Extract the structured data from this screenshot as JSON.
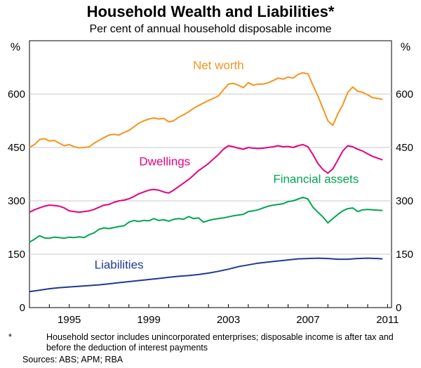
{
  "chart_data": {
    "type": "line",
    "title": "Household Wealth and Liabilities*",
    "subtitle": "Per cent of annual household disposable income",
    "ylabel_left": "%",
    "ylabel_right": "%",
    "xlim": [
      1993.0,
      2011.2
    ],
    "ylim": [
      0,
      750
    ],
    "y_ticks": [
      0,
      150,
      300,
      450,
      600
    ],
    "x_ticks": [
      1995,
      1999,
      2003,
      2007,
      2011
    ],
    "grid": "horizontal",
    "series": [
      {
        "name": "Net worth",
        "color": "#f7941d",
        "x": [
          1993.0,
          1993.25,
          1993.5,
          1993.75,
          1994.0,
          1994.25,
          1994.5,
          1994.75,
          1995.0,
          1995.25,
          1995.5,
          1995.75,
          1996.0,
          1996.25,
          1996.5,
          1996.75,
          1997.0,
          1997.25,
          1997.5,
          1997.75,
          1998.0,
          1998.25,
          1998.5,
          1998.75,
          1999.0,
          1999.25,
          1999.5,
          1999.75,
          2000.0,
          2000.25,
          2000.5,
          2000.75,
          2001.0,
          2001.25,
          2001.5,
          2001.75,
          2002.0,
          2002.25,
          2002.5,
          2002.75,
          2003.0,
          2003.25,
          2003.5,
          2003.75,
          2004.0,
          2004.25,
          2004.5,
          2004.75,
          2005.0,
          2005.25,
          2005.5,
          2005.75,
          2006.0,
          2006.25,
          2006.5,
          2006.75,
          2007.0,
          2007.25,
          2007.5,
          2007.75,
          2008.0,
          2008.25,
          2008.5,
          2008.75,
          2009.0,
          2009.25,
          2009.5,
          2009.75,
          2010.0,
          2010.25,
          2010.5,
          2010.75
        ],
        "values": [
          450,
          458,
          472,
          475,
          468,
          470,
          462,
          455,
          458,
          452,
          449,
          450,
          452,
          462,
          470,
          478,
          485,
          487,
          485,
          492,
          498,
          508,
          518,
          525,
          530,
          533,
          530,
          532,
          522,
          525,
          535,
          542,
          550,
          560,
          568,
          575,
          582,
          588,
          595,
          612,
          628,
          630,
          625,
          618,
          632,
          625,
          628,
          628,
          632,
          638,
          645,
          642,
          648,
          645,
          655,
          660,
          657,
          625,
          595,
          560,
          525,
          512,
          545,
          570,
          605,
          620,
          608,
          605,
          598,
          590,
          588,
          585
        ],
        "label_pos": [
          2002.5,
          670
        ]
      },
      {
        "name": "Dwellings",
        "color": "#e6007e",
        "x": [
          1993.0,
          1993.25,
          1993.5,
          1993.75,
          1994.0,
          1994.25,
          1994.5,
          1994.75,
          1995.0,
          1995.25,
          1995.5,
          1995.75,
          1996.0,
          1996.25,
          1996.5,
          1996.75,
          1997.0,
          1997.25,
          1997.5,
          1997.75,
          1998.0,
          1998.25,
          1998.5,
          1998.75,
          1999.0,
          1999.25,
          1999.5,
          1999.75,
          2000.0,
          2000.25,
          2000.5,
          2000.75,
          2001.0,
          2001.25,
          2001.5,
          2001.75,
          2002.0,
          2002.25,
          2002.5,
          2002.75,
          2003.0,
          2003.25,
          2003.5,
          2003.75,
          2004.0,
          2004.25,
          2004.5,
          2004.75,
          2005.0,
          2005.25,
          2005.5,
          2005.75,
          2006.0,
          2006.25,
          2006.5,
          2006.75,
          2007.0,
          2007.25,
          2007.5,
          2007.75,
          2008.0,
          2008.25,
          2008.5,
          2008.75,
          2009.0,
          2009.25,
          2009.5,
          2009.75,
          2010.0,
          2010.25,
          2010.5,
          2010.75
        ],
        "values": [
          268,
          275,
          280,
          285,
          288,
          287,
          285,
          280,
          272,
          270,
          268,
          270,
          272,
          276,
          282,
          288,
          290,
          296,
          300,
          302,
          306,
          312,
          320,
          325,
          330,
          332,
          330,
          325,
          322,
          330,
          340,
          350,
          360,
          372,
          385,
          395,
          405,
          418,
          430,
          445,
          455,
          452,
          448,
          445,
          450,
          448,
          447,
          448,
          450,
          452,
          455,
          452,
          453,
          450,
          455,
          458,
          452,
          430,
          405,
          388,
          378,
          390,
          415,
          440,
          455,
          452,
          445,
          440,
          432,
          425,
          420,
          415
        ],
        "label_pos": [
          1999.8,
          400
        ]
      },
      {
        "name": "Financial assets",
        "color": "#00a651",
        "x": [
          1993.0,
          1993.25,
          1993.5,
          1993.75,
          1994.0,
          1994.25,
          1994.5,
          1994.75,
          1995.0,
          1995.25,
          1995.5,
          1995.75,
          1996.0,
          1996.25,
          1996.5,
          1996.75,
          1997.0,
          1997.25,
          1997.5,
          1997.75,
          1998.0,
          1998.25,
          1998.5,
          1998.75,
          1999.0,
          1999.25,
          1999.5,
          1999.75,
          2000.0,
          2000.25,
          2000.5,
          2000.75,
          2001.0,
          2001.25,
          2001.5,
          2001.75,
          2002.0,
          2002.25,
          2002.5,
          2002.75,
          2003.0,
          2003.25,
          2003.5,
          2003.75,
          2004.0,
          2004.25,
          2004.5,
          2004.75,
          2005.0,
          2005.25,
          2005.5,
          2005.75,
          2006.0,
          2006.25,
          2006.5,
          2006.75,
          2007.0,
          2007.25,
          2007.5,
          2007.75,
          2008.0,
          2008.25,
          2008.5,
          2008.75,
          2009.0,
          2009.25,
          2009.5,
          2009.75,
          2010.0,
          2010.25,
          2010.5,
          2010.75
        ],
        "values": [
          184,
          192,
          202,
          196,
          195,
          198,
          197,
          195,
          198,
          197,
          199,
          197,
          205,
          210,
          220,
          224,
          222,
          225,
          228,
          230,
          240,
          245,
          242,
          245,
          244,
          250,
          245,
          247,
          243,
          248,
          250,
          248,
          256,
          250,
          252,
          240,
          245,
          248,
          250,
          252,
          255,
          258,
          260,
          262,
          270,
          272,
          275,
          280,
          285,
          288,
          290,
          292,
          298,
          300,
          305,
          310,
          305,
          282,
          268,
          255,
          238,
          250,
          262,
          272,
          278,
          280,
          270,
          275,
          276,
          275,
          274,
          273
        ],
        "label_pos": [
          2007.4,
          350
        ]
      },
      {
        "name": "Liabilities",
        "color": "#1f3a93",
        "x": [
          1993.0,
          1993.5,
          1994.0,
          1994.5,
          1995.0,
          1995.5,
          1996.0,
          1996.5,
          1997.0,
          1997.5,
          1998.0,
          1998.5,
          1999.0,
          1999.5,
          2000.0,
          2000.5,
          2001.0,
          2001.5,
          2002.0,
          2002.5,
          2003.0,
          2003.5,
          2004.0,
          2004.5,
          2005.0,
          2005.5,
          2006.0,
          2006.5,
          2007.0,
          2007.5,
          2008.0,
          2008.5,
          2009.0,
          2009.5,
          2010.0,
          2010.5,
          2010.75
        ],
        "values": [
          45,
          49,
          53,
          56,
          58,
          60,
          62,
          64,
          67,
          70,
          73,
          76,
          79,
          82,
          85,
          88,
          90,
          93,
          97,
          102,
          108,
          115,
          120,
          125,
          128,
          131,
          134,
          137,
          138,
          139,
          138,
          136,
          136,
          138,
          139,
          138,
          137
        ],
        "label_pos": [
          1997.5,
          110
        ]
      }
    ]
  },
  "footnote_star": "*",
  "footnote_text": "Household sector includes unincorporated enterprises; disposable income is after tax and before the deduction of interest payments",
  "sources": "Sources:  ABS; APM; RBA"
}
